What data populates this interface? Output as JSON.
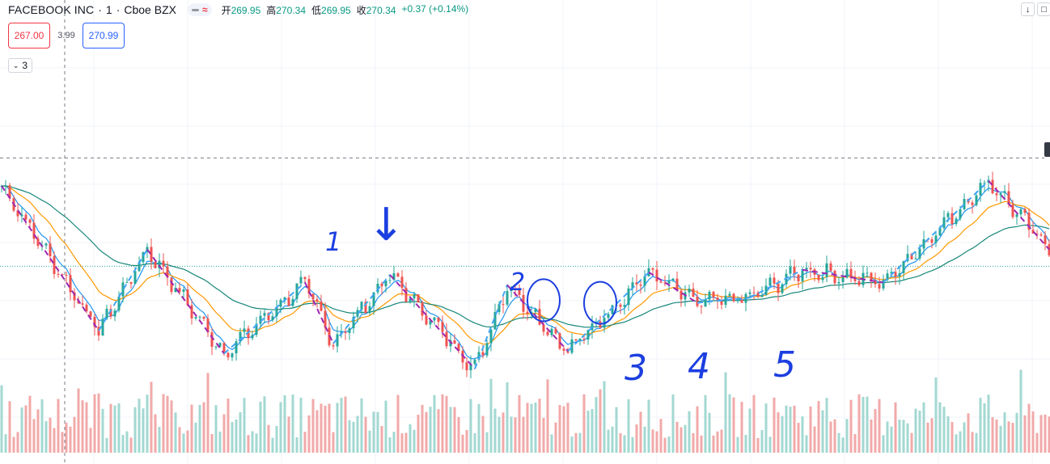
{
  "header": {
    "symbol": "FACEBOOK INC",
    "interval": "1",
    "exchange": "Cboe BZX",
    "separator": "·",
    "pill_wave": "≈",
    "ohlc": [
      {
        "key": "开",
        "value": "269.95"
      },
      {
        "key": "高",
        "value": "270.34"
      },
      {
        "key": "低",
        "value": "269.95"
      },
      {
        "key": "收",
        "value": "270.34"
      }
    ],
    "change": "+0.37 (+0.14%)"
  },
  "trade": {
    "sell": "267.00",
    "spread": "3.99",
    "buy": "270.99"
  },
  "indicators_toggle": {
    "chevron": "⌄",
    "count": "3"
  },
  "corner_buttons": {
    "down_icon": "↓",
    "square_icon": "□"
  },
  "annotations": {
    "labels": [
      "1",
      "2",
      "3",
      "4",
      "5"
    ],
    "arrow": "↓"
  },
  "colors": {
    "up": "#26a69a",
    "down": "#ef5350",
    "vol_up": "#a3d8d2",
    "vol_down": "#f2a9a9",
    "ma_fast": "#2196f3",
    "ma_mid": "#ff9800",
    "ma_slow": "#17877a",
    "trend_up": "#42a5f5",
    "trend_down": "#9c27b0",
    "ink": "#1c3fe0"
  },
  "chart_data": {
    "type": "candlestick",
    "x_unit": "bar",
    "ylim": [
      263,
      277
    ],
    "reference_lines": {
      "horizontal_dashed": 274.6,
      "price_dotted": 270.34
    },
    "key_points": [
      {
        "x": 0,
        "y": 273.5
      },
      {
        "x": 24,
        "y": 267.8
      },
      {
        "x": 36,
        "y": 271.0
      },
      {
        "x": 55,
        "y": 266.9
      },
      {
        "x": 75,
        "y": 269.7
      },
      {
        "x": 82,
        "y": 267.3
      },
      {
        "x": 96,
        "y": 270.0
      },
      {
        "x": 117,
        "y": 266.3
      },
      {
        "x": 125,
        "y": 269.6
      },
      {
        "x": 140,
        "y": 267.0
      },
      {
        "x": 160,
        "y": 270.1
      },
      {
        "x": 172,
        "y": 268.9
      },
      {
        "x": 185,
        "y": 269.1
      },
      {
        "x": 198,
        "y": 270.2
      },
      {
        "x": 218,
        "y": 269.7
      },
      {
        "x": 244,
        "y": 273.7
      },
      {
        "x": 259,
        "y": 271.0
      }
    ]
  }
}
